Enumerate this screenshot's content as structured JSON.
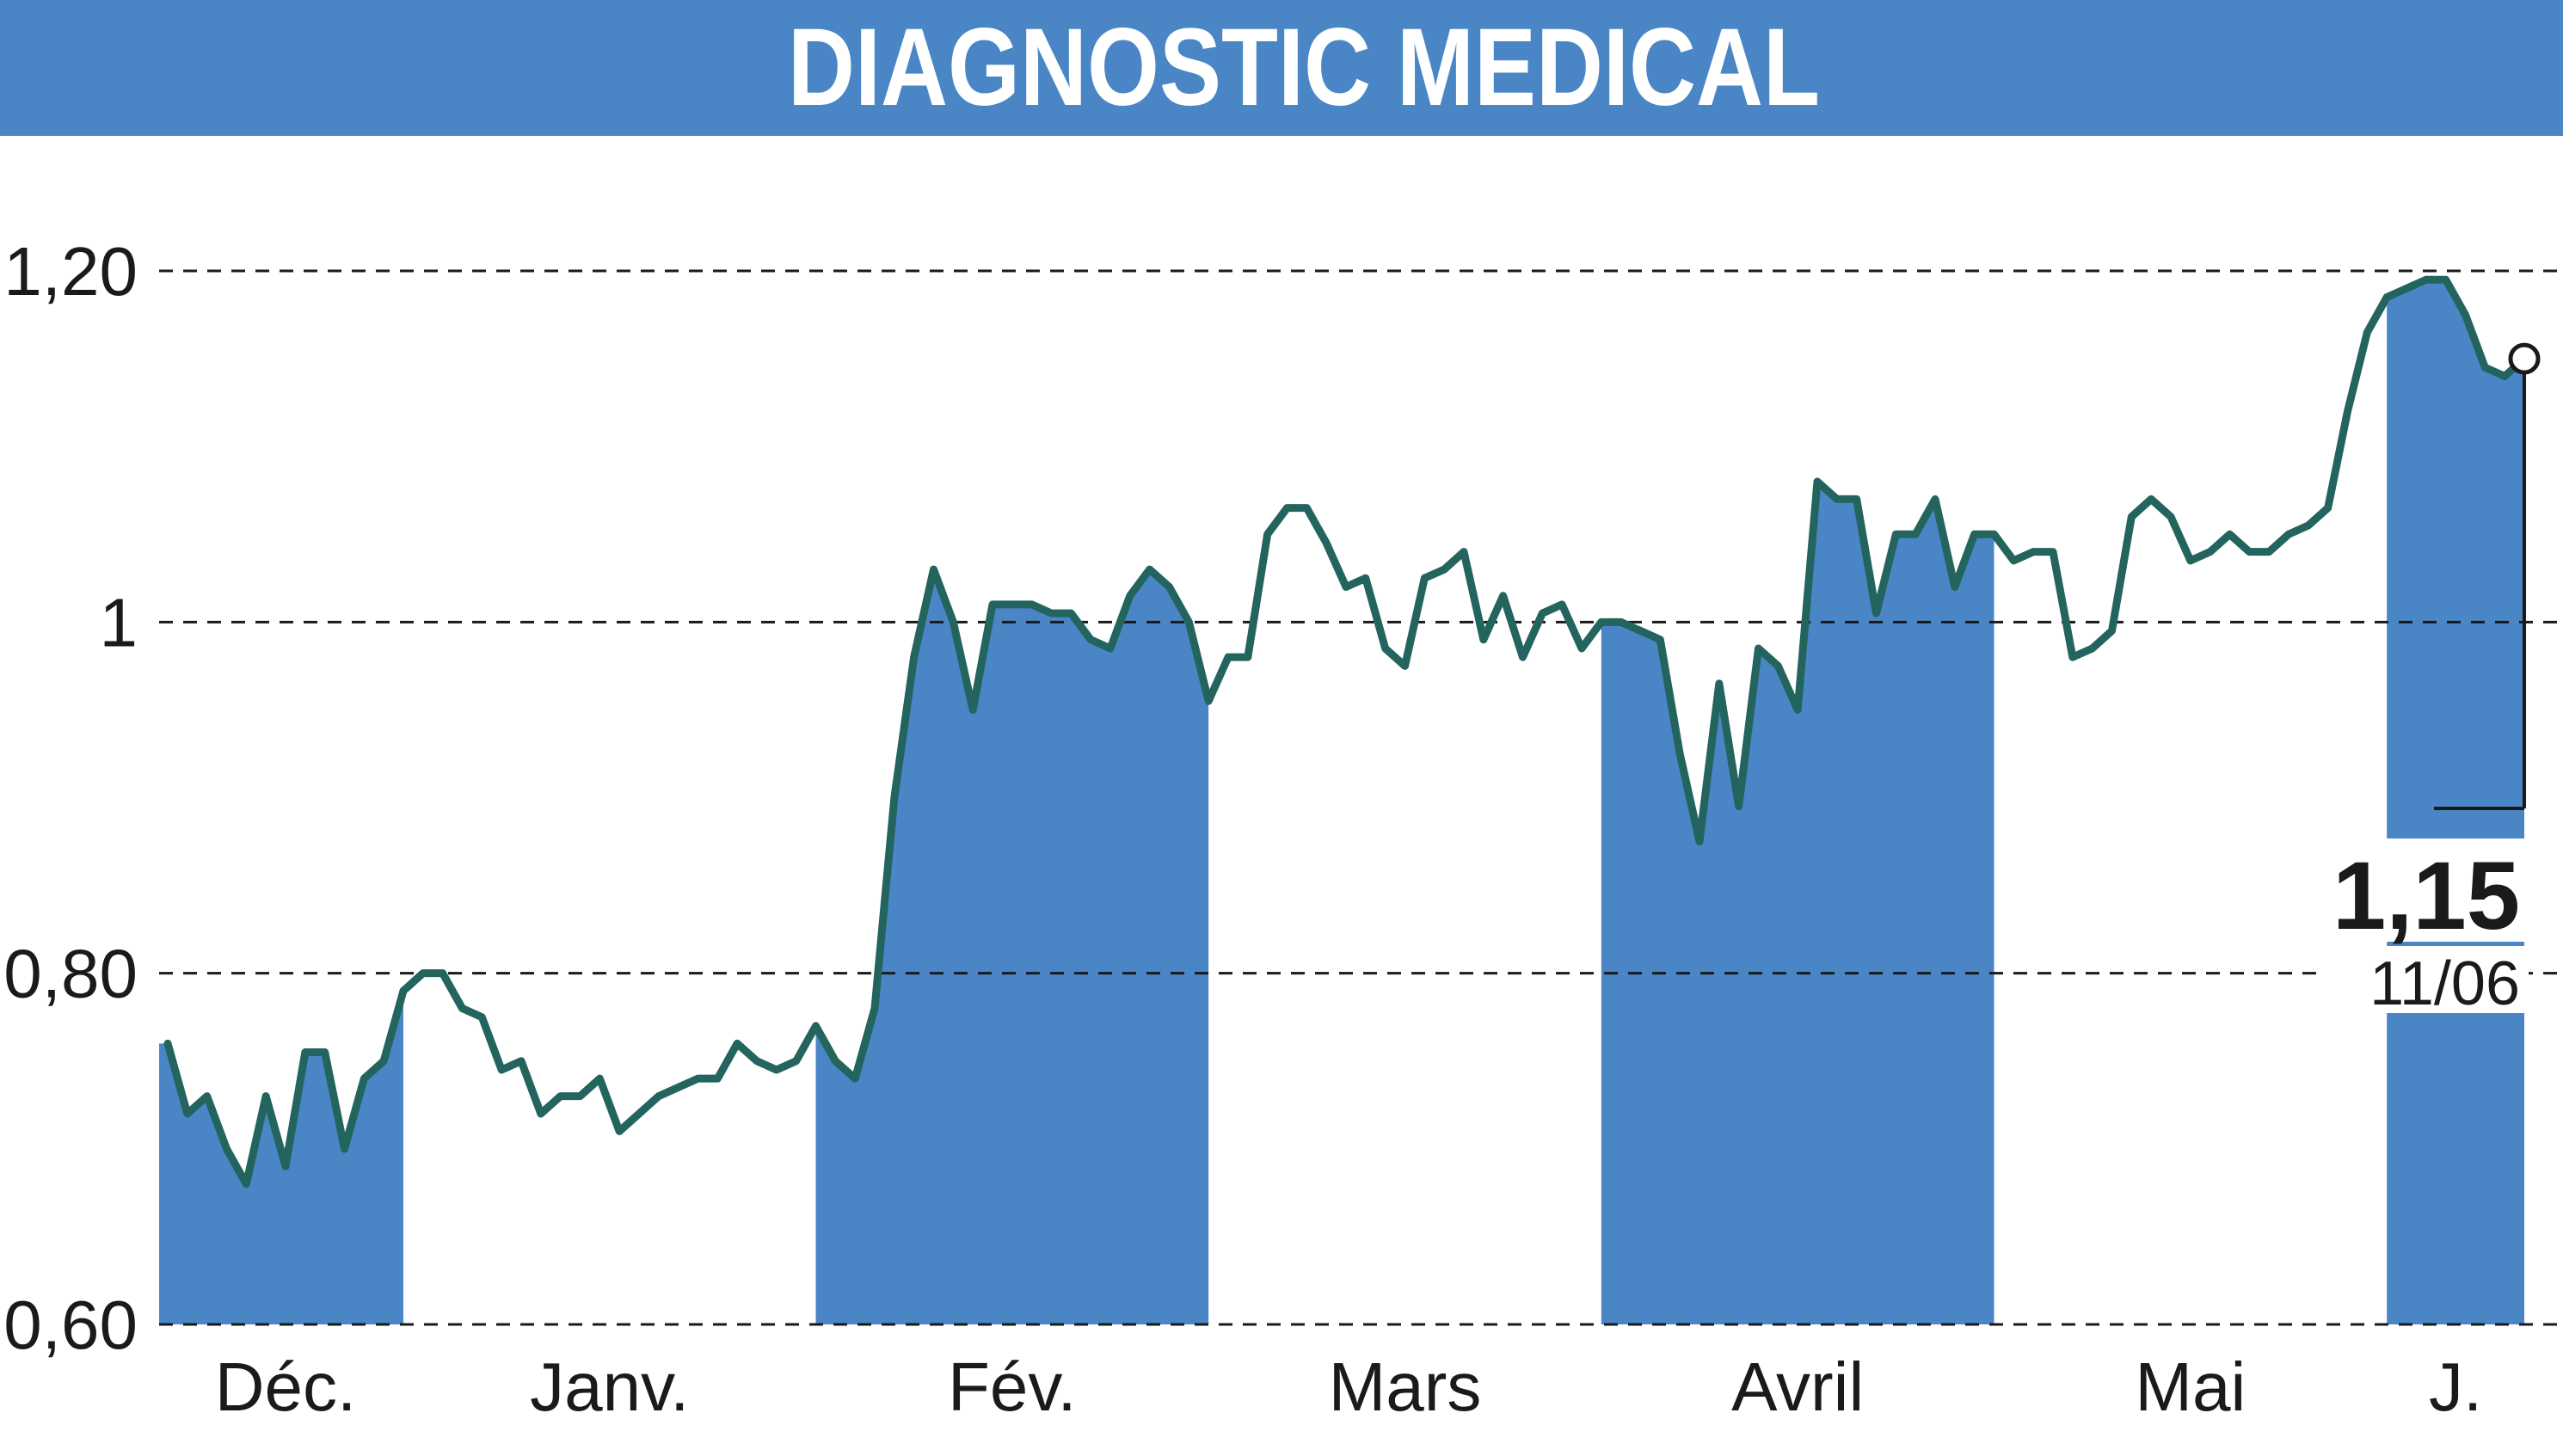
{
  "title": "DIAGNOSTIC MEDICAL",
  "colors": {
    "banner": "#4a86c5",
    "band": "#4a86c5",
    "line": "#24645e",
    "grid": "#1a1a1a",
    "text": "#1a1a1a",
    "background": "#ffffff"
  },
  "chart_data": {
    "type": "line",
    "title": "DIAGNOSTIC MEDICAL",
    "xlabel": "",
    "ylabel": "",
    "ylim": [
      0.6,
      1.2
    ],
    "y_ticks": [
      {
        "value": 1.2,
        "label": "1,20"
      },
      {
        "value": 1.0,
        "label": "1"
      },
      {
        "value": 0.8,
        "label": "0,80"
      },
      {
        "value": 0.6,
        "label": "0,60"
      }
    ],
    "grid": "horizontal-dashed",
    "months": [
      {
        "label": "Déc.",
        "start": 0,
        "end": 12,
        "shaded": true
      },
      {
        "label": "Janv.",
        "start": 12,
        "end": 33,
        "shaded": false
      },
      {
        "label": "Fév.",
        "start": 33,
        "end": 53,
        "shaded": true
      },
      {
        "label": "Mars",
        "start": 53,
        "end": 73,
        "shaded": false
      },
      {
        "label": "Avril",
        "start": 73,
        "end": 93,
        "shaded": true
      },
      {
        "label": "Mai",
        "start": 93,
        "end": 113,
        "shaded": false
      },
      {
        "label": "J.",
        "start": 113,
        "end": 120,
        "shaded": true
      }
    ],
    "series": [
      {
        "values": [
          0.76,
          0.72,
          0.73,
          0.7,
          0.68,
          0.73,
          0.69,
          0.755,
          0.755,
          0.7,
          0.74,
          0.75,
          0.79,
          0.8,
          0.8,
          0.78,
          0.775,
          0.745,
          0.75,
          0.72,
          0.73,
          0.73,
          0.74,
          0.71,
          0.72,
          0.73,
          0.735,
          0.74,
          0.74,
          0.76,
          0.75,
          0.745,
          0.75,
          0.77,
          0.75,
          0.74,
          0.78,
          0.9,
          0.98,
          1.03,
          1.0,
          0.95,
          1.01,
          1.01,
          1.01,
          1.005,
          1.005,
          0.99,
          0.985,
          1.015,
          1.03,
          1.02,
          1.0,
          0.955,
          0.98,
          0.98,
          1.05,
          1.065,
          1.065,
          1.045,
          1.02,
          1.025,
          0.985,
          0.975,
          1.025,
          1.03,
          1.04,
          0.99,
          1.015,
          0.98,
          1.005,
          1.01,
          0.985,
          1.0,
          1.0,
          0.995,
          0.99,
          0.925,
          0.875,
          0.965,
          0.895,
          0.985,
          0.975,
          0.95,
          1.08,
          1.07,
          1.07,
          1.005,
          1.05,
          1.05,
          1.07,
          1.02,
          1.05,
          1.05,
          1.035,
          1.04,
          1.04,
          0.98,
          0.985,
          0.995,
          1.06,
          1.07,
          1.06,
          1.035,
          1.04,
          1.05,
          1.04,
          1.04,
          1.05,
          1.055,
          1.065,
          1.12,
          1.165,
          1.185,
          1.19,
          1.195,
          1.195,
          1.175,
          1.145,
          1.14,
          1.15
        ]
      }
    ],
    "last_value": {
      "label": "1,15",
      "date": "11/06"
    }
  }
}
